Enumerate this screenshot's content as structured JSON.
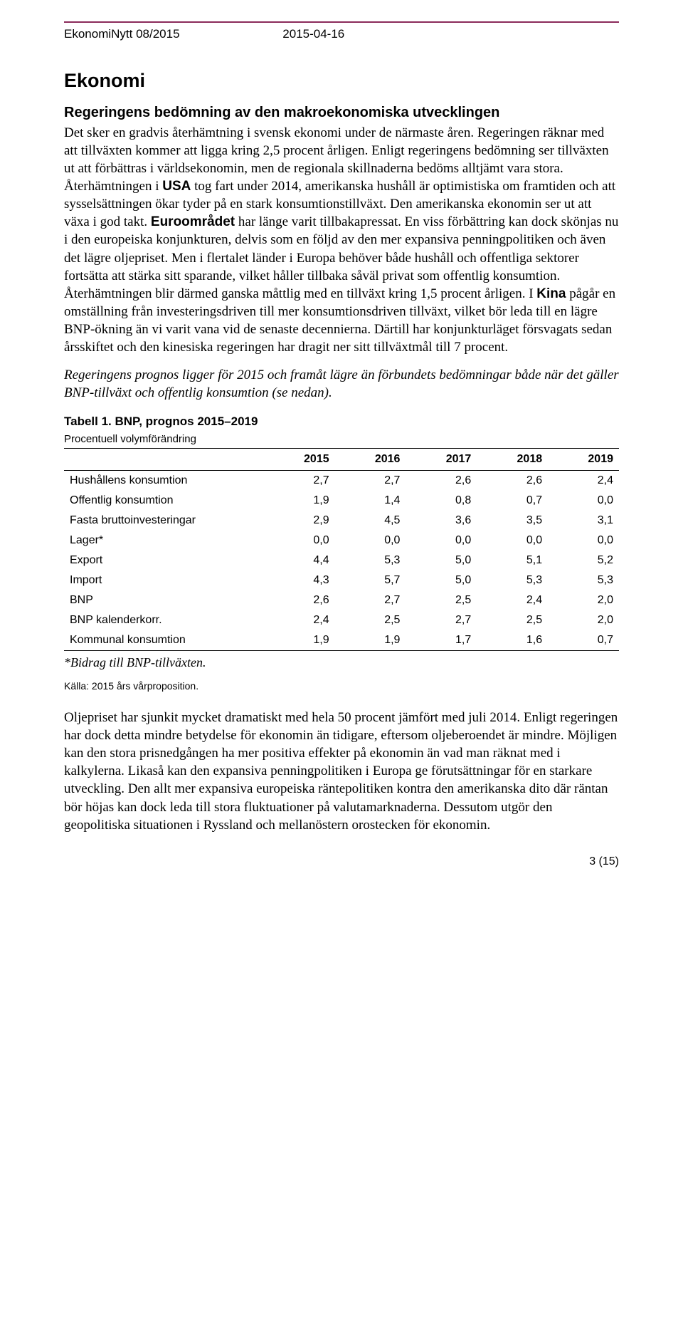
{
  "header": {
    "issue": "EkonomiNytt 08/2015",
    "date": "2015-04-16"
  },
  "title": "Ekonomi",
  "subheading": "Regeringens bedömning av den makroekonomiska utvecklingen",
  "para1_before_usa": "Det sker en gradvis återhämtning i svensk ekonomi under de närmaste åren. Regeringen räknar med att tillväxten kommer att ligga kring 2,5 procent årligen. Enligt regeringens bedömning ser tillväxten ut att förbättras i världsekonomin, men de regionala skillnaderna bedöms alltjämt vara stora. Återhämtningen i ",
  "bold_usa": "USA",
  "para1_after_usa": " tog fart under 2014, amerikanska hushåll är optimistiska om framtiden och att sysselsättningen ökar tyder på en stark konsumtionstillväxt. Den amerikanska ekonomin ser ut att växa i god takt. ",
  "bold_euro": "Euroområdet",
  "para1_after_euro": " har länge varit tillbakapressat. En viss förbättring kan dock skönjas nu i den europeiska konjunkturen, delvis som en följd av den mer expansiva penningpolitiken och även det lägre oljepriset. Men i flertalet länder i Europa behöver både hushåll och offentliga sektorer fortsätta att stärka sitt sparande, vilket håller tillbaka såväl privat som offentlig konsumtion. Återhämtningen blir därmed ganska måttlig med en tillväxt kring 1,5 procent årligen. I ",
  "bold_kina": "Kina",
  "para1_after_kina": " pågår en omställning från investeringsdriven till mer konsumtionsdriven tillväxt, vilket bör leda till en lägre BNP-ökning än vi varit vana vid de senaste decennierna. Därtill har konjunkturläget försvagats sedan årsskiftet och den kinesiska regeringen har dragit ner sitt tillväxtmål till 7 procent.",
  "para_italic": "Regeringens prognos ligger för 2015 och framåt lägre än förbundets bedömningar både när det gäller BNP-tillväxt och offentlig konsumtion (se nedan).",
  "table": {
    "title": "Tabell 1. BNP, prognos 2015–2019",
    "subtitle": "Procentuell volymförändring",
    "columns": [
      "2015",
      "2016",
      "2017",
      "2018",
      "2019"
    ],
    "rows": [
      {
        "label": "Hushållens konsumtion",
        "v": [
          "2,7",
          "2,7",
          "2,6",
          "2,6",
          "2,4"
        ]
      },
      {
        "label": "Offentlig konsumtion",
        "v": [
          "1,9",
          "1,4",
          "0,8",
          "0,7",
          "0,0"
        ]
      },
      {
        "label": "Fasta bruttoinvesteringar",
        "v": [
          "2,9",
          "4,5",
          "3,6",
          "3,5",
          "3,1"
        ]
      },
      {
        "label": "Lager*",
        "v": [
          "0,0",
          "0,0",
          "0,0",
          "0,0",
          "0,0"
        ]
      },
      {
        "label": "Export",
        "v": [
          "4,4",
          "5,3",
          "5,0",
          "5,1",
          "5,2"
        ]
      },
      {
        "label": "Import",
        "v": [
          "4,3",
          "5,7",
          "5,0",
          "5,3",
          "5,3"
        ]
      },
      {
        "label": "BNP",
        "v": [
          "2,6",
          "2,7",
          "2,5",
          "2,4",
          "2,0"
        ]
      },
      {
        "label": "BNP kalenderkorr.",
        "v": [
          "2,4",
          "2,5",
          "2,7",
          "2,5",
          "2,0"
        ]
      },
      {
        "label": "Kommunal konsumtion",
        "v": [
          "1,9",
          "1,9",
          "1,7",
          "1,6",
          "0,7"
        ]
      }
    ],
    "footnote": "*Bidrag till BNP-tillväxten.",
    "source": "Källa: 2015 års vårproposition."
  },
  "para_last": "Oljepriset har sjunkit mycket dramatiskt med hela 50 procent jämfört med juli 2014. Enligt regeringen har dock detta mindre betydelse för ekonomin än tidigare, eftersom oljeberoendet är mindre. Möjligen kan den stora prisnedgången ha mer positiva effekter på ekonomin än vad man räknat med i kalkylerna. Likaså kan den expansiva penningpolitiken i Europa ge förutsättningar för en starkare utveckling. Den allt mer expansiva europeiska räntepolitiken kontra den amerikanska dito där räntan bör höjas kan dock leda till stora fluktuationer på valutamarknaderna. Dessutom utgör den geopolitiska situationen i Ryssland och mellanöstern orostecken för ekonomin.",
  "page_number": "3 (15)",
  "colors": {
    "rule": "#8a2a5a",
    "text": "#000000",
    "background": "#ffffff"
  }
}
